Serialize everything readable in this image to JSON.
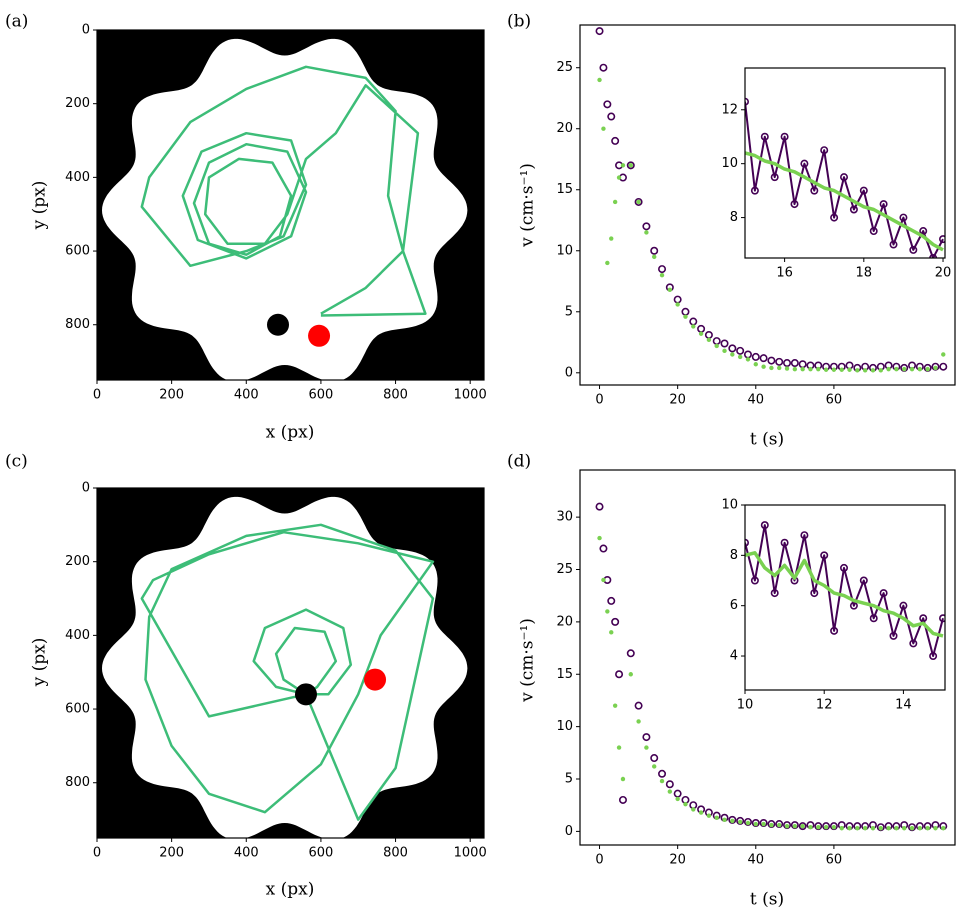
{
  "chart_data": [
    {
      "type": "trajectory",
      "label": "(a)",
      "x_label": "x (px)",
      "y_label": "y (px)",
      "xlim": [
        0,
        1037
      ],
      "ylim": [
        950,
        0
      ],
      "xticks": [
        0,
        200,
        400,
        600,
        800,
        1000
      ],
      "yticks": [
        0,
        200,
        400,
        600,
        800
      ],
      "series": [
        {
          "color": "#3dbd78",
          "x": [
            600,
            880,
            820,
            780,
            800,
            720,
            560,
            400,
            250,
            140,
            120,
            250,
            400,
            500,
            560,
            520,
            400,
            280,
            230,
            270,
            400,
            520,
            560,
            510,
            400,
            300,
            260,
            300,
            400,
            490,
            520,
            470,
            380,
            300,
            290,
            350,
            450,
            510,
            560,
            640,
            720,
            860,
            820,
            720,
            600
          ],
          "values": [
            775,
            770,
            600,
            450,
            220,
            130,
            100,
            160,
            250,
            400,
            480,
            640,
            600,
            560,
            420,
            300,
            280,
            330,
            450,
            570,
            620,
            560,
            440,
            330,
            310,
            360,
            470,
            580,
            610,
            560,
            450,
            360,
            350,
            400,
            500,
            580,
            580,
            500,
            350,
            280,
            150,
            280,
            600,
            700,
            770
          ]
        }
      ],
      "markers": {
        "x": [
          485,
          595
        ],
        "values": [
          800,
          830
        ],
        "colors": [
          "#000000",
          "#ff0000"
        ]
      }
    },
    {
      "type": "scatter",
      "label": "(b)",
      "x_label": "t (s)",
      "y_label": "v (cm·s⁻¹)",
      "xlim": [
        -5,
        91
      ],
      "ylim": [
        -1,
        28.5
      ],
      "xticks": [
        0,
        20,
        40,
        60
      ],
      "yticks": [
        0,
        5,
        10,
        15,
        20,
        25
      ],
      "x": [
        0,
        1,
        2,
        3,
        4,
        5,
        6,
        8,
        10,
        12,
        14,
        16,
        18,
        20,
        22,
        24,
        26,
        28,
        30,
        32,
        34,
        36,
        38,
        40,
        42,
        44,
        46,
        48,
        50,
        52,
        54,
        56,
        58,
        60,
        62,
        64,
        66,
        68,
        70,
        72,
        74,
        76,
        78,
        80,
        82,
        84,
        86,
        88
      ],
      "series": [
        {
          "color": "#440154",
          "marker": "open-circle",
          "line": false,
          "values": [
            28,
            25,
            22,
            21,
            19,
            17,
            16,
            17,
            14,
            12,
            10,
            8.5,
            7,
            6,
            5,
            4.2,
            3.6,
            3.1,
            2.6,
            2.4,
            2.0,
            1.8,
            1.5,
            1.3,
            1.2,
            1.0,
            0.9,
            0.8,
            0.8,
            0.7,
            0.6,
            0.6,
            0.5,
            0.5,
            0.5,
            0.6,
            0.4,
            0.5,
            0.4,
            0.5,
            0.6,
            0.5,
            0.4,
            0.6,
            0.5,
            0.4,
            0.5,
            0.5
          ]
        },
        {
          "color": "#7ad151",
          "marker": "dot",
          "line": false,
          "values": [
            24,
            20,
            9,
            11,
            14,
            16,
            17,
            17,
            14,
            11.5,
            9.5,
            8,
            6.8,
            5.6,
            4.6,
            3.8,
            3.2,
            2.7,
            2.2,
            1.8,
            1.5,
            1.3,
            1.1,
            0.7,
            0.5,
            0.4,
            0.4,
            0.35,
            0.3,
            0.3,
            0.3,
            0.3,
            0.25,
            0.25,
            0.25,
            0.25,
            0.2,
            0.2,
            0.2,
            0.2,
            0.3,
            0.3,
            0.3,
            0.3,
            0.3,
            0.3,
            0.4,
            1.5
          ]
        }
      ],
      "inset": {
        "type": "line",
        "xlim": [
          15,
          20.05
        ],
        "ylim": [
          6.5,
          13.55
        ],
        "xticks": [
          16,
          18,
          20
        ],
        "yticks": [
          8,
          10,
          12
        ],
        "x": [
          15,
          15.25,
          15.5,
          15.75,
          16,
          16.25,
          16.5,
          16.75,
          17,
          17.25,
          17.5,
          17.75,
          18,
          18.25,
          18.5,
          18.75,
          19,
          19.25,
          19.5,
          19.75,
          20
        ],
        "series": [
          {
            "color": "#440154",
            "marker": "open-circle",
            "line": true,
            "values": [
              12.3,
              9,
              11,
              9.5,
              11,
              8.5,
              10,
              9,
              10.5,
              8,
              9.5,
              8.3,
              9,
              7.5,
              8.5,
              7,
              8,
              6.8,
              7.5,
              6.5,
              7.2
            ]
          },
          {
            "color": "#7ad151",
            "marker": "none",
            "line": true,
            "values": [
              10.4,
              10.3,
              10.1,
              10,
              9.8,
              9.7,
              9.5,
              9.3,
              9.1,
              9,
              8.8,
              8.6,
              8.4,
              8.3,
              8.1,
              7.9,
              7.7,
              7.5,
              7.3,
              7.0,
              6.8
            ]
          }
        ]
      }
    },
    {
      "type": "trajectory",
      "label": "(c)",
      "x_label": "x (px)",
      "y_label": "y (px)",
      "xlim": [
        0,
        1037
      ],
      "ylim": [
        950,
        0
      ],
      "xticks": [
        0,
        200,
        400,
        600,
        800,
        1000
      ],
      "yticks": [
        0,
        200,
        400,
        600,
        800
      ],
      "series": [
        {
          "color": "#3dbd78",
          "x": [
            560,
            480,
            420,
            450,
            560,
            660,
            680,
            620,
            560,
            500,
            480,
            530,
            610,
            640,
            590,
            560,
            700,
            800,
            900,
            800,
            600,
            400,
            200,
            140,
            130,
            200,
            300,
            450,
            600,
            700,
            760,
            900,
            700,
            500,
            300,
            150,
            120,
            300,
            560
          ],
          "values": [
            560,
            540,
            470,
            380,
            330,
            380,
            480,
            560,
            560,
            520,
            450,
            380,
            390,
            470,
            540,
            560,
            900,
            760,
            300,
            170,
            100,
            130,
            220,
            350,
            520,
            700,
            830,
            880,
            750,
            560,
            400,
            200,
            150,
            120,
            180,
            250,
            300,
            620,
            560
          ]
        }
      ],
      "markers": {
        "x": [
          560,
          745
        ],
        "values": [
          560,
          520
        ],
        "colors": [
          "#000000",
          "#ff0000"
        ]
      }
    },
    {
      "type": "scatter",
      "label": "(d)",
      "x_label": "t (s)",
      "y_label": "v (cm·s⁻¹)",
      "xlim": [
        -5,
        91
      ],
      "ylim": [
        -1.3,
        34.5
      ],
      "xticks": [
        0,
        20,
        40,
        60
      ],
      "yticks": [
        0,
        5,
        10,
        15,
        20,
        25,
        30
      ],
      "x": [
        0,
        1,
        2,
        3,
        4,
        5,
        6,
        8,
        10,
        12,
        14,
        16,
        18,
        20,
        22,
        24,
        26,
        28,
        30,
        32,
        34,
        36,
        38,
        40,
        42,
        44,
        46,
        48,
        50,
        52,
        54,
        56,
        58,
        60,
        62,
        64,
        66,
        68,
        70,
        72,
        74,
        76,
        78,
        80,
        82,
        84,
        86,
        88
      ],
      "series": [
        {
          "color": "#440154",
          "marker": "open-circle",
          "line": false,
          "values": [
            31,
            27,
            24,
            22,
            20,
            15,
            3,
            17,
            12,
            9,
            7,
            5.5,
            4.5,
            3.6,
            3,
            2.5,
            2.1,
            1.8,
            1.5,
            1.3,
            1.1,
            1.0,
            0.9,
            0.8,
            0.8,
            0.7,
            0.7,
            0.6,
            0.6,
            0.5,
            0.6,
            0.5,
            0.5,
            0.5,
            0.6,
            0.5,
            0.5,
            0.5,
            0.6,
            0.4,
            0.5,
            0.5,
            0.6,
            0.4,
            0.5,
            0.5,
            0.6,
            0.5
          ]
        },
        {
          "color": "#7ad151",
          "marker": "dot",
          "line": false,
          "values": [
            28,
            24,
            21,
            19,
            12,
            8,
            5,
            15,
            10.5,
            8,
            6.2,
            4.8,
            3.8,
            3.1,
            2.6,
            2.1,
            1.8,
            1.5,
            1.3,
            1.1,
            1.0,
            0.9,
            0.8,
            0.7,
            0.7,
            0.6,
            0.6,
            0.5,
            0.5,
            0.5,
            0.4,
            0.4,
            0.4,
            0.4,
            0.3,
            0.3,
            0.3,
            0.3,
            0.3,
            0.3,
            0.3,
            0.3,
            0.3,
            0.3,
            0.3,
            0.3,
            0.3,
            0.3
          ]
        }
      ],
      "inset": {
        "type": "line",
        "xlim": [
          10,
          15.05
        ],
        "ylim": [
          2.65,
          10
        ],
        "xticks": [
          10,
          12,
          14
        ],
        "yticks": [
          4,
          6,
          8,
          10
        ],
        "x": [
          10,
          10.25,
          10.5,
          10.75,
          11,
          11.25,
          11.5,
          11.75,
          12,
          12.25,
          12.5,
          12.75,
          13,
          13.25,
          13.5,
          13.75,
          14,
          14.25,
          14.5,
          14.75,
          15
        ],
        "series": [
          {
            "color": "#440154",
            "marker": "open-circle",
            "line": true,
            "values": [
              8.5,
              7,
              9.2,
              6.5,
              8.5,
              7,
              8.8,
              6.5,
              8,
              5,
              7.5,
              6,
              7,
              5.5,
              6.5,
              4.8,
              6,
              4.5,
              5.5,
              4,
              5.5
            ]
          },
          {
            "color": "#7ad151",
            "marker": "none",
            "line": true,
            "values": [
              8,
              8.1,
              7.5,
              7.2,
              7.6,
              7.1,
              7.8,
              7,
              6.8,
              6.5,
              6.4,
              6.2,
              6.1,
              6,
              5.8,
              5.7,
              5.5,
              5.2,
              5.3,
              4.9,
              4.8
            ]
          }
        ]
      }
    }
  ]
}
